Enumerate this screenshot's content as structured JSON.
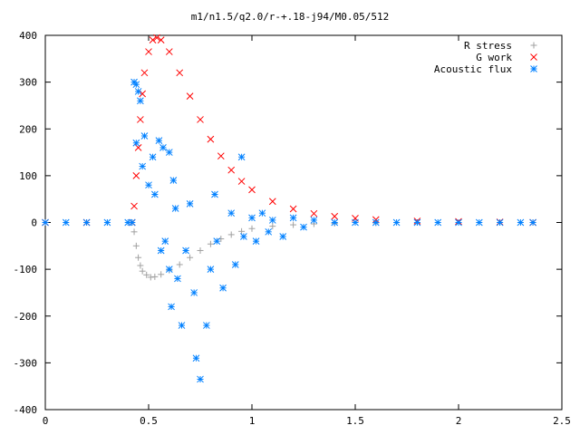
{
  "chart_data": {
    "type": "scatter",
    "title": "m1/n1.5/q2.0/r-+.18-j94/M0.05/512",
    "xlabel": "",
    "ylabel": "",
    "xlim": [
      0,
      2.5
    ],
    "ylim": [
      -400,
      400
    ],
    "x_ticks": [
      0,
      0.5,
      1,
      1.5,
      2,
      2.5
    ],
    "x_tick_labels": [
      "0",
      "0.5",
      "1",
      "1.5",
      "2",
      "2.5"
    ],
    "y_ticks": [
      -400,
      -300,
      -200,
      -100,
      0,
      100,
      200,
      300,
      400
    ],
    "y_tick_labels": [
      "-400",
      "-300",
      "-200",
      "-100",
      "0",
      "100",
      "200",
      "300",
      "400"
    ],
    "grid": false,
    "legend_position": "top-right",
    "series": [
      {
        "name": "R stress",
        "color": "#a0a0a0",
        "marker": "plus",
        "points": [
          [
            0.0,
            0
          ],
          [
            0.2,
            0
          ],
          [
            0.42,
            0
          ],
          [
            0.43,
            -20
          ],
          [
            0.44,
            -50
          ],
          [
            0.45,
            -75
          ],
          [
            0.46,
            -92
          ],
          [
            0.47,
            -104
          ],
          [
            0.49,
            -112
          ],
          [
            0.51,
            -117
          ],
          [
            0.53,
            -116
          ],
          [
            0.56,
            -111
          ],
          [
            0.6,
            -102
          ],
          [
            0.65,
            -90
          ],
          [
            0.7,
            -75
          ],
          [
            0.75,
            -60
          ],
          [
            0.8,
            -46
          ],
          [
            0.85,
            -35
          ],
          [
            0.9,
            -26
          ],
          [
            0.95,
            -19
          ],
          [
            1.0,
            -13
          ],
          [
            1.1,
            -8
          ],
          [
            1.2,
            -5
          ],
          [
            1.3,
            -3
          ],
          [
            1.4,
            -2
          ],
          [
            1.6,
            -1
          ],
          [
            1.8,
            0
          ],
          [
            2.0,
            0
          ],
          [
            2.2,
            0
          ],
          [
            2.36,
            0
          ]
        ]
      },
      {
        "name": "G work",
        "color": "#ff0000",
        "marker": "cross",
        "points": [
          [
            0.0,
            0
          ],
          [
            0.2,
            0
          ],
          [
            0.42,
            0
          ],
          [
            0.43,
            35
          ],
          [
            0.44,
            100
          ],
          [
            0.45,
            160
          ],
          [
            0.46,
            220
          ],
          [
            0.47,
            275
          ],
          [
            0.48,
            320
          ],
          [
            0.5,
            365
          ],
          [
            0.52,
            390
          ],
          [
            0.54,
            395
          ],
          [
            0.56,
            390
          ],
          [
            0.6,
            365
          ],
          [
            0.65,
            320
          ],
          [
            0.7,
            270
          ],
          [
            0.75,
            220
          ],
          [
            0.8,
            178
          ],
          [
            0.85,
            142
          ],
          [
            0.9,
            112
          ],
          [
            0.95,
            88
          ],
          [
            1.0,
            70
          ],
          [
            1.1,
            45
          ],
          [
            1.2,
            29
          ],
          [
            1.3,
            19
          ],
          [
            1.4,
            13
          ],
          [
            1.5,
            9
          ],
          [
            1.6,
            6
          ],
          [
            1.8,
            3
          ],
          [
            2.0,
            2
          ],
          [
            2.2,
            1
          ],
          [
            2.36,
            0
          ]
        ]
      },
      {
        "name": "Acoustic flux",
        "color": "#0080ff",
        "marker": "star",
        "points": [
          [
            0.0,
            0
          ],
          [
            0.1,
            0
          ],
          [
            0.2,
            0
          ],
          [
            0.3,
            0
          ],
          [
            0.4,
            0
          ],
          [
            0.42,
            0
          ],
          [
            0.43,
            300
          ],
          [
            0.44,
            295
          ],
          [
            0.45,
            280
          ],
          [
            0.46,
            260
          ],
          [
            0.44,
            170
          ],
          [
            0.48,
            185
          ],
          [
            0.47,
            120
          ],
          [
            0.5,
            80
          ],
          [
            0.52,
            140
          ],
          [
            0.53,
            60
          ],
          [
            0.55,
            175
          ],
          [
            0.57,
            160
          ],
          [
            0.56,
            -60
          ],
          [
            0.58,
            -40
          ],
          [
            0.6,
            150
          ],
          [
            0.62,
            90
          ],
          [
            0.63,
            30
          ],
          [
            0.6,
            -100
          ],
          [
            0.61,
            -180
          ],
          [
            0.64,
            -120
          ],
          [
            0.66,
            -220
          ],
          [
            0.68,
            -60
          ],
          [
            0.7,
            40
          ],
          [
            0.72,
            -150
          ],
          [
            0.73,
            -290
          ],
          [
            0.75,
            -335
          ],
          [
            0.78,
            -220
          ],
          [
            0.8,
            -100
          ],
          [
            0.82,
            60
          ],
          [
            0.83,
            -40
          ],
          [
            0.86,
            -140
          ],
          [
            0.9,
            20
          ],
          [
            0.92,
            -90
          ],
          [
            0.95,
            140
          ],
          [
            0.96,
            -30
          ],
          [
            1.0,
            10
          ],
          [
            1.02,
            -40
          ],
          [
            1.05,
            20
          ],
          [
            1.08,
            -20
          ],
          [
            1.1,
            5
          ],
          [
            1.15,
            -30
          ],
          [
            1.2,
            10
          ],
          [
            1.25,
            -10
          ],
          [
            1.3,
            5
          ],
          [
            1.4,
            0
          ],
          [
            1.5,
            0
          ],
          [
            1.6,
            0
          ],
          [
            1.7,
            0
          ],
          [
            1.8,
            0
          ],
          [
            1.9,
            0
          ],
          [
            2.0,
            0
          ],
          [
            2.1,
            0
          ],
          [
            2.2,
            0
          ],
          [
            2.3,
            0
          ],
          [
            2.36,
            0
          ]
        ]
      }
    ]
  }
}
